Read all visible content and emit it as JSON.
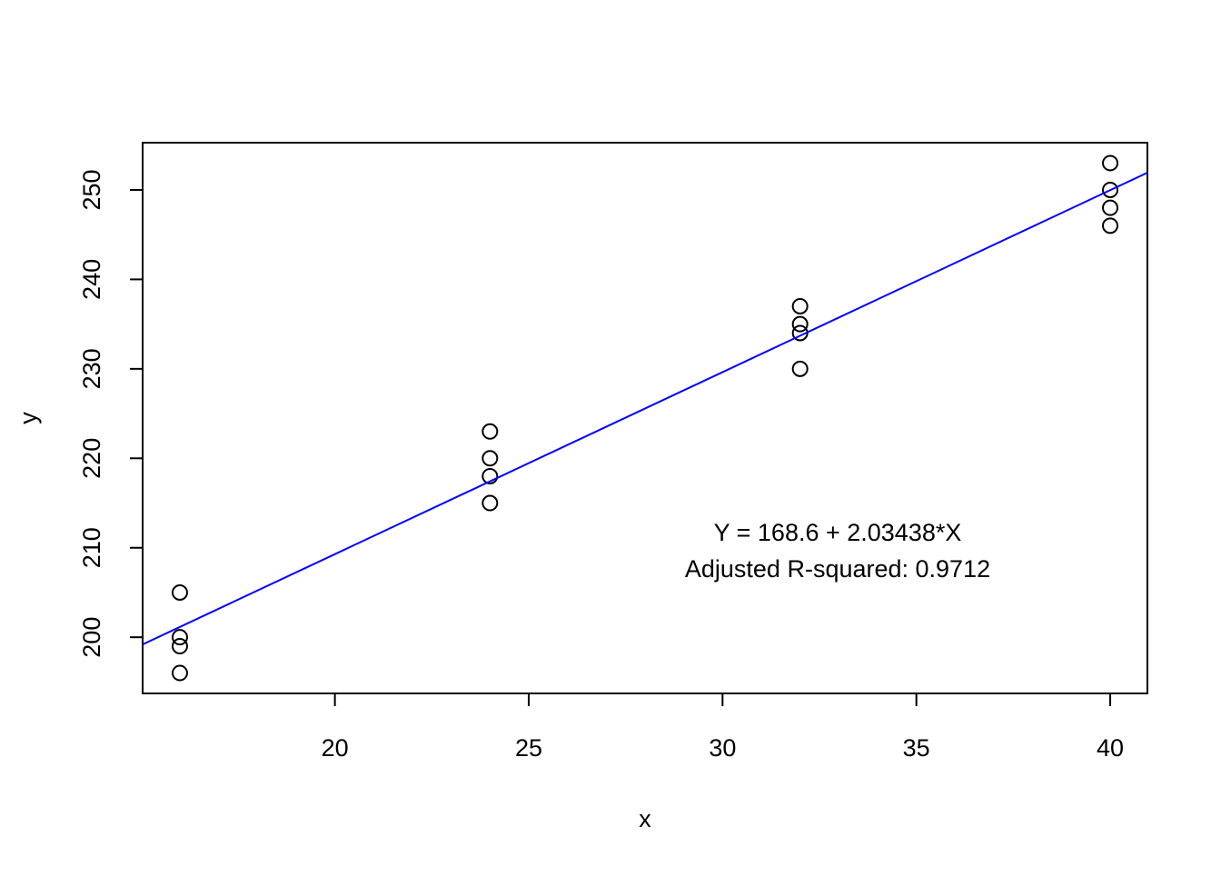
{
  "chart_data": {
    "type": "scatter",
    "x_label": "x",
    "y_label": "y",
    "series": [
      {
        "x": [
          16,
          16,
          16,
          16,
          24,
          24,
          24,
          24,
          32,
          32,
          32,
          32,
          40,
          40,
          40,
          40
        ],
        "values": [
          205,
          200,
          199,
          196,
          223,
          220,
          218,
          215,
          237,
          235,
          234,
          230,
          253,
          250,
          248,
          246
        ],
        "color": "#000000"
      }
    ],
    "fit": {
      "intercept": 168.6,
      "slope": 2.03438,
      "color": "#0000ff"
    },
    "annotations": [
      "Y = 168.6 + 2.03438*X",
      "Adjusted R-squared:  0.9712"
    ],
    "xlim": [
      15.04,
      40.96
    ],
    "xticks": [
      20,
      25,
      30,
      35,
      40
    ],
    "ylim": [
      193.72,
      255.28
    ],
    "yticks": [
      200,
      210,
      220,
      230,
      240,
      250
    ]
  }
}
